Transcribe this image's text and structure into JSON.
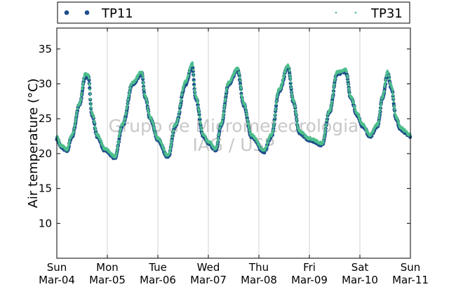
{
  "chart_data": {
    "type": "scatter",
    "title": "",
    "ylabel": "Air temperature (°C)",
    "xlabel": "",
    "ylim": [
      5,
      38
    ],
    "yticks": [
      10,
      15,
      20,
      25,
      30,
      35
    ],
    "xlim_days": [
      0,
      7
    ],
    "xtick_labels": [
      {
        "day": "Sun",
        "date": "Mar-04"
      },
      {
        "day": "Mon",
        "date": "Mar-05"
      },
      {
        "day": "Tue",
        "date": "Mar-06"
      },
      {
        "day": "Wed",
        "date": "Mar-07"
      },
      {
        "day": "Thu",
        "date": "Mar-08"
      },
      {
        "day": "Fri",
        "date": "Mar-09"
      },
      {
        "day": "Sat",
        "date": "Mar-10"
      },
      {
        "day": "Sun",
        "date": "Mar-11"
      }
    ],
    "grid": "vertical",
    "legend_position": "top",
    "watermark": [
      "Grupo de Micrometeorologia",
      "IAG / USP"
    ],
    "series": [
      {
        "name": "TP11",
        "color": "#1f4e8c",
        "marker": "circle",
        "anchors": [
          [
            0.0,
            22.2
          ],
          [
            0.08,
            21.0
          ],
          [
            0.2,
            20.4
          ],
          [
            0.3,
            22.5
          ],
          [
            0.45,
            27.0
          ],
          [
            0.56,
            31.0
          ],
          [
            0.62,
            31.0
          ],
          [
            0.7,
            25.5
          ],
          [
            0.8,
            22.5
          ],
          [
            0.95,
            20.5
          ],
          [
            1.15,
            19.4
          ],
          [
            1.3,
            24.0
          ],
          [
            1.5,
            30.0
          ],
          [
            1.68,
            31.5
          ],
          [
            1.75,
            28.0
          ],
          [
            1.85,
            25.0
          ],
          [
            2.0,
            22.0
          ],
          [
            2.2,
            19.5
          ],
          [
            2.35,
            24.0
          ],
          [
            2.55,
            30.0
          ],
          [
            2.68,
            32.5
          ],
          [
            2.75,
            28.0
          ],
          [
            2.9,
            22.5
          ],
          [
            3.0,
            21.5
          ],
          [
            3.15,
            20.5
          ],
          [
            3.25,
            24.0
          ],
          [
            3.4,
            30.0
          ],
          [
            3.58,
            32.0
          ],
          [
            3.7,
            27.0
          ],
          [
            3.85,
            22.5
          ],
          [
            4.1,
            20.3
          ],
          [
            4.25,
            22.5
          ],
          [
            4.4,
            29.0
          ],
          [
            4.58,
            32.5
          ],
          [
            4.68,
            27.5
          ],
          [
            4.8,
            23.0
          ],
          [
            5.0,
            22.0
          ],
          [
            5.25,
            21.3
          ],
          [
            5.4,
            26.0
          ],
          [
            5.55,
            31.5
          ],
          [
            5.72,
            31.8
          ],
          [
            5.82,
            28.0
          ],
          [
            5.95,
            25.5
          ],
          [
            6.05,
            24.0
          ],
          [
            6.2,
            22.5
          ],
          [
            6.35,
            24.0
          ],
          [
            6.45,
            28.0
          ],
          [
            6.55,
            31.5
          ],
          [
            6.62,
            29.5
          ],
          [
            6.72,
            25.0
          ],
          [
            6.8,
            23.5
          ],
          [
            7.0,
            22.5
          ]
        ]
      },
      {
        "name": "TP31",
        "color": "#4dbf8c",
        "marker": "point",
        "anchors": [
          [
            0.0,
            22.4
          ],
          [
            0.08,
            21.2
          ],
          [
            0.2,
            20.6
          ],
          [
            0.3,
            22.7
          ],
          [
            0.45,
            27.2
          ],
          [
            0.56,
            31.4
          ],
          [
            0.62,
            31.3
          ],
          [
            0.7,
            25.7
          ],
          [
            0.8,
            22.7
          ],
          [
            0.95,
            20.7
          ],
          [
            1.15,
            19.6
          ],
          [
            1.3,
            24.2
          ],
          [
            1.5,
            30.2
          ],
          [
            1.68,
            31.7
          ],
          [
            1.75,
            28.2
          ],
          [
            1.85,
            25.2
          ],
          [
            2.0,
            22.2
          ],
          [
            2.2,
            19.7
          ],
          [
            2.35,
            24.2
          ],
          [
            2.55,
            30.3
          ],
          [
            2.68,
            33.0
          ],
          [
            2.75,
            28.2
          ],
          [
            2.9,
            22.7
          ],
          [
            3.0,
            21.7
          ],
          [
            3.15,
            20.7
          ],
          [
            3.25,
            24.2
          ],
          [
            3.4,
            30.2
          ],
          [
            3.58,
            32.2
          ],
          [
            3.7,
            27.2
          ],
          [
            3.85,
            22.7
          ],
          [
            4.1,
            20.5
          ],
          [
            4.25,
            22.7
          ],
          [
            4.4,
            29.2
          ],
          [
            4.58,
            32.7
          ],
          [
            4.68,
            27.7
          ],
          [
            4.8,
            23.2
          ],
          [
            5.0,
            22.2
          ],
          [
            5.25,
            21.5
          ],
          [
            5.4,
            26.2
          ],
          [
            5.55,
            31.7
          ],
          [
            5.72,
            32.0
          ],
          [
            5.82,
            28.2
          ],
          [
            5.95,
            25.7
          ],
          [
            6.05,
            24.2
          ],
          [
            6.2,
            22.7
          ],
          [
            6.35,
            24.2
          ],
          [
            6.45,
            28.2
          ],
          [
            6.55,
            31.8
          ],
          [
            6.62,
            29.7
          ],
          [
            6.72,
            25.2
          ],
          [
            6.8,
            23.7
          ],
          [
            7.0,
            22.7
          ]
        ]
      }
    ]
  }
}
